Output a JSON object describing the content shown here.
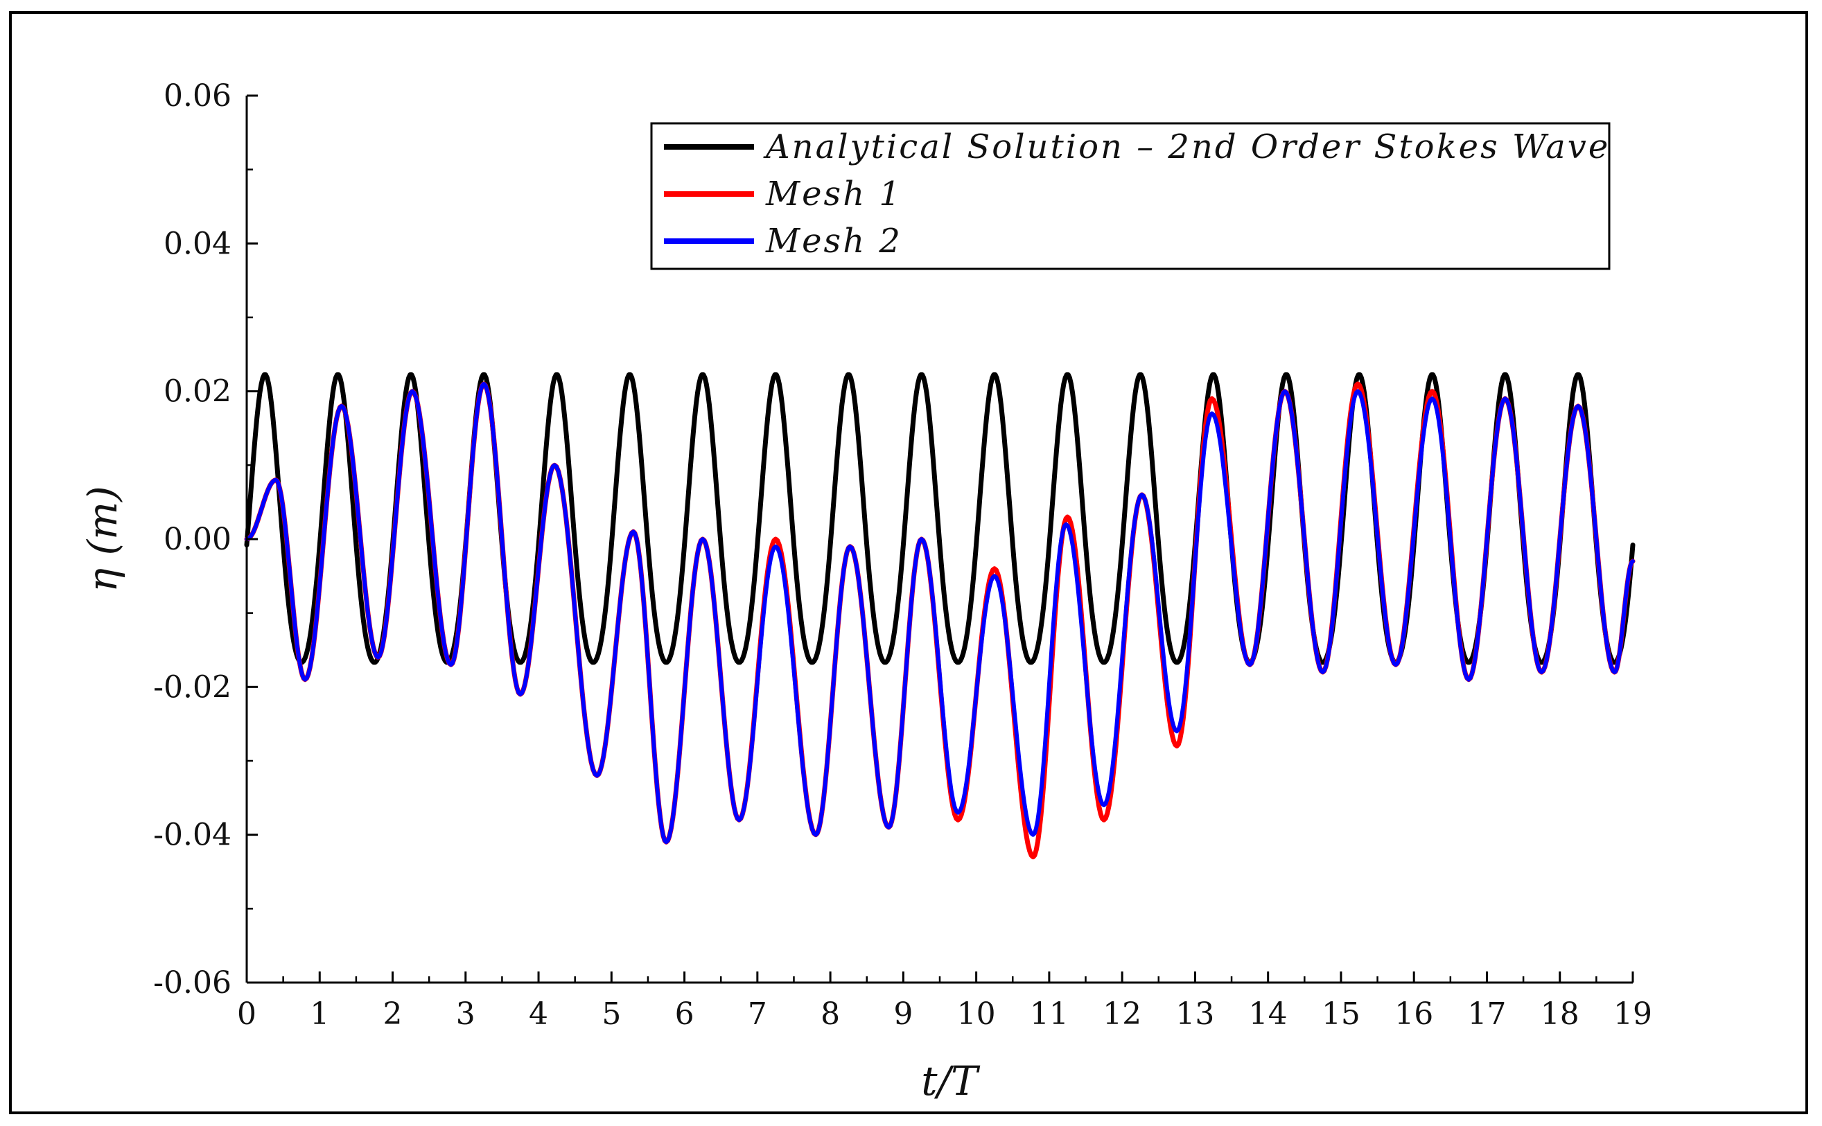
{
  "chart_data": {
    "type": "line",
    "xlabel": "t/T",
    "ylabel": "η (m)",
    "xlim": [
      0,
      19
    ],
    "ylim": [
      -0.06,
      0.06
    ],
    "x_ticks": [
      "0",
      "1",
      "2",
      "3",
      "4",
      "5",
      "6",
      "7",
      "8",
      "9",
      "10",
      "11",
      "12",
      "13",
      "14",
      "15",
      "16",
      "17",
      "18",
      "19"
    ],
    "y_ticks": [
      "0.06",
      "0.04",
      "0.02",
      "0.00",
      "-0.02",
      "-0.04",
      "-0.06"
    ],
    "grid": false,
    "legend_position": "top-right",
    "series": [
      {
        "name": "Analytical Solution – 2nd Order Stokes Wave",
        "color": "#000000",
        "mean": 0.001,
        "amplitude": 0.0195,
        "peak_phase": 0.25,
        "peak": 0.021,
        "trough": -0.0185
      },
      {
        "name": "Mesh 1",
        "color": "#ff0000",
        "peaks": [
          [
            0.4,
            0.008
          ],
          [
            1.3,
            0.018
          ],
          [
            2.27,
            0.02
          ],
          [
            3.25,
            0.021
          ],
          [
            4.22,
            0.01
          ],
          [
            5.3,
            0.001
          ],
          [
            6.25,
            0.0
          ],
          [
            7.25,
            0.0
          ],
          [
            8.27,
            -0.001
          ],
          [
            9.25,
            0.0
          ],
          [
            10.25,
            -0.004
          ],
          [
            11.25,
            0.003
          ],
          [
            12.27,
            0.006
          ],
          [
            13.23,
            0.019
          ],
          [
            14.23,
            0.02
          ],
          [
            15.23,
            0.021
          ],
          [
            16.25,
            0.02
          ],
          [
            17.25,
            0.019
          ],
          [
            18.25,
            0.018
          ]
        ],
        "troughs": [
          [
            0.8,
            -0.019
          ],
          [
            1.8,
            -0.016
          ],
          [
            2.8,
            -0.017
          ],
          [
            3.75,
            -0.021
          ],
          [
            4.8,
            -0.032
          ],
          [
            5.75,
            -0.041
          ],
          [
            6.75,
            -0.038
          ],
          [
            7.8,
            -0.04
          ],
          [
            8.8,
            -0.039
          ],
          [
            9.75,
            -0.038
          ],
          [
            10.78,
            -0.043
          ],
          [
            11.75,
            -0.038
          ],
          [
            12.75,
            -0.028
          ],
          [
            13.75,
            -0.017
          ],
          [
            14.75,
            -0.018
          ],
          [
            15.75,
            -0.017
          ],
          [
            16.75,
            -0.019
          ],
          [
            17.75,
            -0.018
          ],
          [
            18.75,
            -0.018
          ]
        ]
      },
      {
        "name": "Mesh 2",
        "color": "#0000ff",
        "peaks": [
          [
            0.4,
            0.008
          ],
          [
            1.3,
            0.018
          ],
          [
            2.27,
            0.02
          ],
          [
            3.25,
            0.021
          ],
          [
            4.22,
            0.01
          ],
          [
            5.3,
            0.001
          ],
          [
            6.25,
            0.0
          ],
          [
            7.25,
            -0.001
          ],
          [
            8.27,
            -0.001
          ],
          [
            9.25,
            0.0
          ],
          [
            10.25,
            -0.005
          ],
          [
            11.23,
            0.002
          ],
          [
            12.27,
            0.006
          ],
          [
            13.23,
            0.017
          ],
          [
            14.23,
            0.02
          ],
          [
            15.23,
            0.02
          ],
          [
            16.25,
            0.019
          ],
          [
            17.25,
            0.019
          ],
          [
            18.25,
            0.018
          ]
        ],
        "troughs": [
          [
            0.8,
            -0.019
          ],
          [
            1.8,
            -0.016
          ],
          [
            2.8,
            -0.017
          ],
          [
            3.75,
            -0.021
          ],
          [
            4.8,
            -0.032
          ],
          [
            5.75,
            -0.041
          ],
          [
            6.75,
            -0.038
          ],
          [
            7.8,
            -0.04
          ],
          [
            8.8,
            -0.039
          ],
          [
            9.75,
            -0.037
          ],
          [
            10.78,
            -0.04
          ],
          [
            11.75,
            -0.036
          ],
          [
            12.75,
            -0.026
          ],
          [
            13.75,
            -0.017
          ],
          [
            14.75,
            -0.018
          ],
          [
            15.75,
            -0.017
          ],
          [
            16.75,
            -0.019
          ],
          [
            17.75,
            -0.018
          ],
          [
            18.75,
            -0.018
          ]
        ]
      }
    ]
  }
}
